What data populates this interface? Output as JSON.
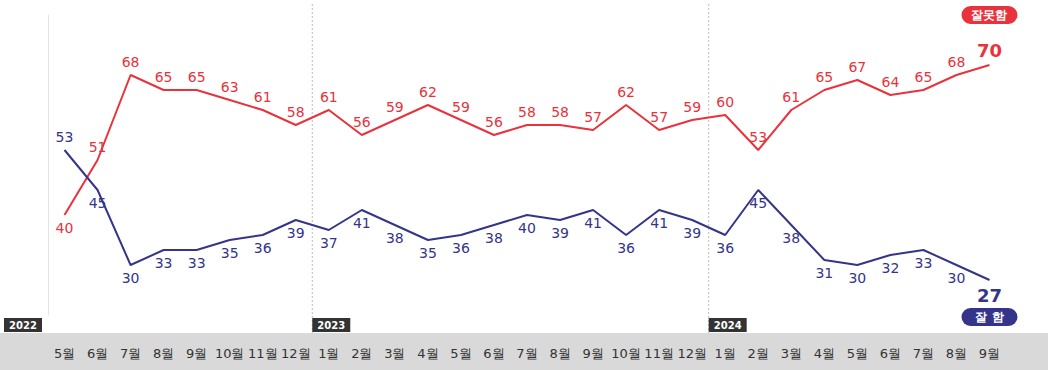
{
  "chart_data": {
    "type": "line",
    "categories": [
      "5월",
      "6월",
      "7월",
      "8월",
      "9월",
      "10월",
      "11월",
      "12월",
      "1월",
      "2월",
      "3월",
      "4월",
      "5월",
      "6월",
      "7월",
      "8월",
      "9월",
      "10월",
      "11월",
      "12월",
      "1월",
      "2월",
      "3월",
      "4월",
      "5월",
      "6월",
      "7월",
      "8월",
      "9월"
    ],
    "series": [
      {
        "name": "잘못함",
        "color": "#e8323c",
        "values": [
          40,
          51,
          68,
          65,
          65,
          63,
          61,
          58,
          61,
          56,
          59,
          62,
          59,
          56,
          58,
          58,
          57,
          62,
          57,
          59,
          60,
          53,
          61,
          65,
          67,
          64,
          65,
          68,
          70
        ]
      },
      {
        "name": "잘 함",
        "color": "#34348a",
        "values": [
          53,
          45,
          30,
          33,
          33,
          35,
          36,
          39,
          37,
          41,
          38,
          35,
          36,
          38,
          40,
          39,
          41,
          36,
          41,
          39,
          36,
          45,
          38,
          31,
          30,
          32,
          33,
          30,
          27
        ]
      }
    ],
    "ylim": [
      20,
      80
    ],
    "grid": false,
    "data_labels": true,
    "tick_labels": "x",
    "annotations": [
      {
        "text": "2022",
        "at": 0
      },
      {
        "text": "2023",
        "at": 8
      },
      {
        "text": "2024",
        "at": 20
      }
    ]
  }
}
